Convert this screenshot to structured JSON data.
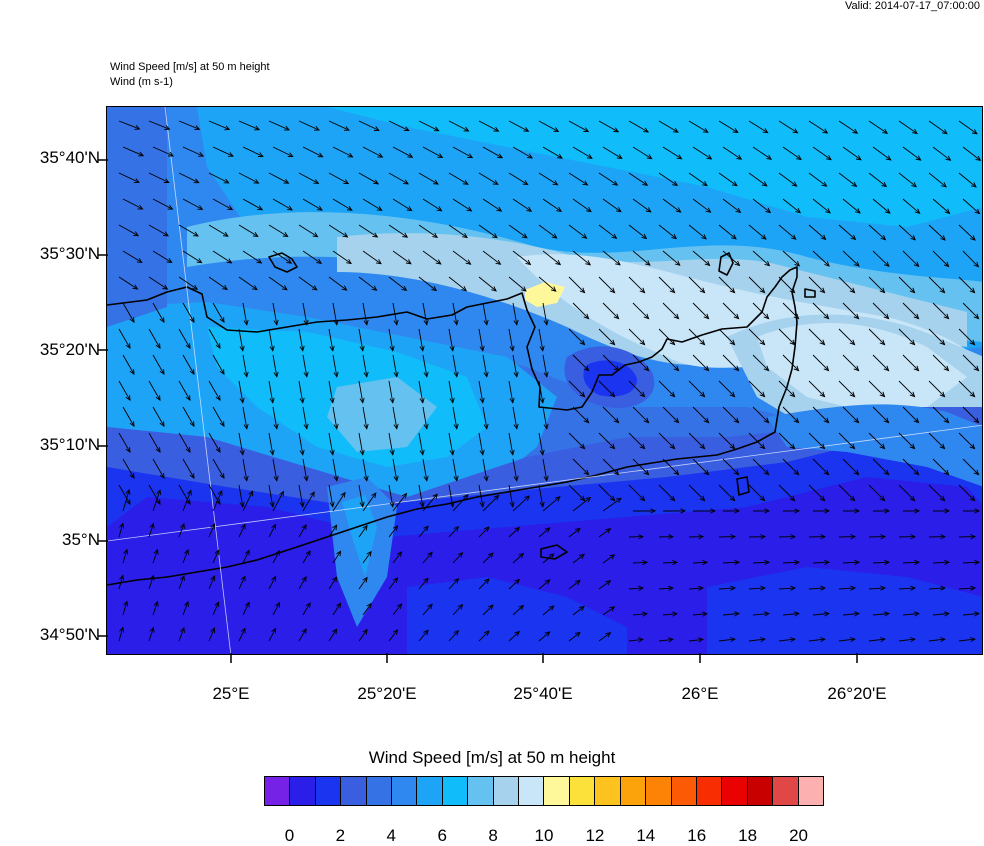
{
  "header": {
    "valid": "Valid: 2014-07-17_07:00:00",
    "title_line1": "Wind Speed [m/s] at 50 m height",
    "title_line2": "Wind   (m s-1)"
  },
  "axes": {
    "lat_labels": [
      "35°40'N",
      "35°30'N",
      "35°20'N",
      "35°10'N",
      "35°N",
      "34°50'N"
    ],
    "lon_labels": [
      "25°E",
      "25°20'E",
      "25°40'E",
      "26°E",
      "26°20'E"
    ]
  },
  "colorbar": {
    "title": "Wind Speed [m/s] at 50 m height",
    "tick_labels": [
      "0",
      "2",
      "4",
      "6",
      "8",
      "10",
      "12",
      "14",
      "16",
      "18",
      "20"
    ],
    "colors": [
      "#7622e6",
      "#2a1ee8",
      "#1a34ef",
      "#3a5ee0",
      "#3572e6",
      "#2f88f0",
      "#1ea4f6",
      "#10bcf9",
      "#65c2f0",
      "#a6d2ee",
      "#c8e6f8",
      "#fef89a",
      "#fce13a",
      "#fcc21e",
      "#fca30c",
      "#fc8306",
      "#fc5a04",
      "#f82d02",
      "#ea0202",
      "#c90000",
      "#e04848",
      "#fcb0b0"
    ]
  },
  "map": {
    "wind_speed_scale": [
      0,
      22
    ],
    "water_color": "#2f7fef",
    "coast_color": "#000000"
  }
}
